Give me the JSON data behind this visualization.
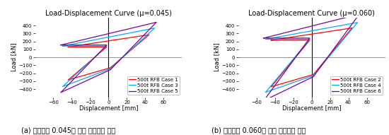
{
  "left_title": "Load-Displacement Curve (μ=0.045)",
  "right_title": "Load-Displacement Curve (μ=0.060)",
  "xlabel": "Displacement [mm]",
  "ylabel": "Load [kN]",
  "xlim": [
    -80,
    80
  ],
  "ylim": [
    -500,
    500
  ],
  "xticks": [
    -60,
    -40,
    -20,
    0,
    20,
    40,
    60
  ],
  "yticks": [
    -400,
    -300,
    -200,
    -100,
    0,
    100,
    200,
    300,
    400
  ],
  "caption_left": "(a) 마찰계수 0.045에 따른 해석결과 비교",
  "caption_right": "(b) 마찰계수 0.060에 따른 해석결과 비교",
  "left_legend": [
    "500t RFB Case 1",
    "500t RFB Case 3",
    "500t RFB Case 5"
  ],
  "right_legend": [
    "500t RFB Case 2",
    "500t RFB Case 4",
    "500t RFB Case 6"
  ],
  "left_colors": [
    "#FF0000",
    "#00AAFF",
    "#7B0099"
  ],
  "right_colors": [
    "#FF0000",
    "#00AAFF",
    "#7B0099"
  ],
  "title_fontsize": 7,
  "axis_label_fontsize": 6,
  "tick_fontsize": 5,
  "legend_fontsize": 5,
  "caption_fontsize": 7,
  "left_params": [
    {
      "d": 50,
      "f_yield": 130,
      "k_post": 3.0,
      "d_max": 50
    },
    {
      "d": 50,
      "f_yield": 145,
      "k_post": 4.2,
      "d_max": 55
    },
    {
      "d": 50,
      "f_yield": 155,
      "k_post": 5.5,
      "d_max": 55
    }
  ],
  "right_params": [
    {
      "d": 50,
      "f_yield": 220,
      "k_post": 3.2,
      "d_max": 50
    },
    {
      "d": 50,
      "f_yield": 235,
      "k_post": 4.2,
      "d_max": 52
    },
    {
      "d": 50,
      "f_yield": 248,
      "k_post": 6.0,
      "d_max": 52
    }
  ]
}
